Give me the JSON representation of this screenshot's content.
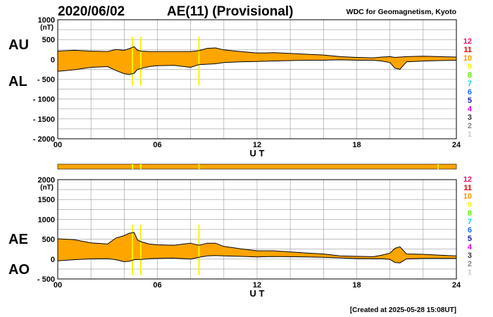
{
  "header": {
    "date": "2020/06/02",
    "title": "AE(11) (Provisional)",
    "source": "WDC for Geomagnetism, Kyoto"
  },
  "footer": {
    "created": "[Created at 2025-05-28 15:08UT]"
  },
  "legend": {
    "levels": [
      {
        "label": "12",
        "color": "#e8146e"
      },
      {
        "label": "11",
        "color": "#e60000"
      },
      {
        "label": "10",
        "color": "#ff9900"
      },
      {
        "label": "9",
        "color": "#f5f500"
      },
      {
        "label": "8",
        "color": "#66e600"
      },
      {
        "label": "7",
        "color": "#00d7d7"
      },
      {
        "label": "6",
        "color": "#1e64ff"
      },
      {
        "label": "5",
        "color": "#1414b4"
      },
      {
        "label": "4",
        "color": "#e100e1"
      },
      {
        "label": "3",
        "color": "#333333"
      },
      {
        "label": "2",
        "color": "#888888"
      },
      {
        "label": "1",
        "color": "#cccccc"
      }
    ]
  },
  "colors": {
    "fill": "#ffa500",
    "station_gap": "#f5f500",
    "grid": "#999999",
    "line": "#000000"
  },
  "chart_data": [
    {
      "type": "area",
      "name": "AU/AL panel",
      "upper_label": "AU",
      "lower_label": "AL",
      "x_unit": "UT hours",
      "xlabel": "U T",
      "xlim": [
        0,
        24
      ],
      "ylim": [
        -2000,
        1000
      ],
      "unit_label": "(nT)",
      "y_ticks": [
        1000,
        500,
        0,
        -500,
        -1000,
        -1500,
        -2000
      ],
      "y_tick_labels": [
        "1000",
        "500",
        "0",
        "- 500",
        "- 1000",
        "- 1500",
        "- 2000"
      ],
      "x_ticks": [
        0,
        6,
        12,
        18,
        24
      ],
      "x_tick_labels": [
        "00",
        "06",
        "12",
        "18",
        "24"
      ],
      "grid": true,
      "x": [
        0,
        1,
        2,
        3,
        3.5,
        4,
        4.3,
        4.6,
        4.8,
        5,
        5.5,
        6,
        7,
        8,
        8.5,
        9,
        9.5,
        10,
        11,
        12,
        13,
        14,
        15,
        16,
        17,
        18,
        19,
        19.5,
        20,
        20.3,
        20.6,
        21,
        22,
        23,
        24
      ],
      "series": [
        {
          "name": "AU",
          "values": [
            210,
            230,
            210,
            200,
            250,
            230,
            270,
            320,
            230,
            210,
            200,
            200,
            200,
            200,
            220,
            280,
            290,
            240,
            200,
            160,
            170,
            150,
            130,
            110,
            70,
            50,
            40,
            60,
            70,
            50,
            60,
            70,
            80,
            70,
            60
          ]
        },
        {
          "name": "AL",
          "values": [
            -300,
            -260,
            -200,
            -180,
            -280,
            -360,
            -380,
            -350,
            -250,
            -230,
            -180,
            -160,
            -150,
            -200,
            -130,
            -120,
            -110,
            -80,
            -60,
            -50,
            -40,
            -30,
            -20,
            -20,
            -10,
            -20,
            -20,
            -40,
            -80,
            -220,
            -250,
            -60,
            -40,
            -30,
            -20
          ]
        }
      ],
      "station_gaps_ut": [
        4.5,
        5.0,
        8.5
      ]
    },
    {
      "type": "area",
      "name": "AE/AO panel",
      "upper_label": "AE",
      "lower_label": "AO",
      "x_unit": "UT hours",
      "xlabel": "U T",
      "xlim": [
        0,
        24
      ],
      "ylim": [
        -500,
        2000
      ],
      "unit_label": "(nT)",
      "y_ticks": [
        2000,
        1500,
        1000,
        500,
        0,
        -500
      ],
      "y_tick_labels": [
        "2000",
        "1500",
        "1000",
        "500",
        "0",
        "- 500"
      ],
      "x_ticks": [
        0,
        6,
        12,
        18,
        24
      ],
      "x_tick_labels": [
        "00",
        "06",
        "12",
        "18",
        "24"
      ],
      "grid": true,
      "x": [
        0,
        1,
        2,
        3,
        3.5,
        4,
        4.3,
        4.6,
        4.8,
        5,
        5.5,
        6,
        7,
        8,
        8.5,
        9,
        9.5,
        10,
        11,
        12,
        13,
        14,
        15,
        16,
        17,
        18,
        19,
        19.5,
        20,
        20.3,
        20.6,
        21,
        22,
        23,
        24
      ],
      "series": [
        {
          "name": "AE",
          "values": [
            510,
            490,
            410,
            380,
            530,
            590,
            650,
            670,
            480,
            440,
            380,
            360,
            350,
            400,
            350,
            400,
            400,
            320,
            260,
            210,
            210,
            180,
            150,
            130,
            80,
            70,
            60,
            100,
            150,
            270,
            310,
            130,
            120,
            100,
            80
          ]
        },
        {
          "name": "AO",
          "values": [
            -45,
            -15,
            5,
            10,
            -15,
            -65,
            -55,
            -15,
            -10,
            -10,
            10,
            20,
            25,
            0,
            45,
            80,
            90,
            80,
            70,
            55,
            65,
            60,
            55,
            45,
            30,
            15,
            10,
            10,
            -5,
            -85,
            -95,
            5,
            20,
            20,
            20
          ]
        }
      ],
      "station_gaps_ut": [
        4.5,
        5.0,
        8.5
      ]
    }
  ],
  "status_bar": {
    "segments_color": "#ffa500",
    "marks_ut": [
      4.5,
      5.0,
      8.5,
      22.9
    ]
  }
}
